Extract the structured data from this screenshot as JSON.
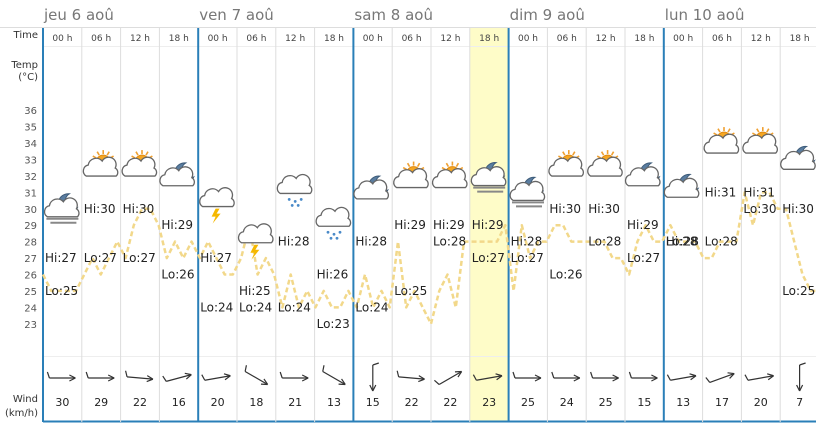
{
  "labels": {
    "time": "Time",
    "temp_line1": "Temp",
    "temp_line2": "(°C)",
    "wind_line1": "Wind",
    "wind_line2": "(km/h)"
  },
  "days": [
    "jeu 6 aoû",
    "ven 7 aoû",
    "sam 8 aoû",
    "dim 9 aoû",
    "lun 10 aoû"
  ],
  "hours": [
    "00 h",
    "06 h",
    "12 h",
    "18 h"
  ],
  "highlight_slot": 11,
  "colors": {
    "day_divider": "#2a7fb8",
    "slot_divider": "#dddddd",
    "temp_line": "#f2d88a",
    "highlight": "#fefcc8",
    "arrow": "#333333"
  },
  "y_ticks": [
    23,
    24,
    25,
    26,
    27,
    28,
    29,
    30,
    31,
    32,
    33,
    34,
    35,
    36
  ],
  "chart_data": {
    "type": "line",
    "ylim": [
      22.5,
      36.5
    ],
    "series": [
      {
        "values": [
          26,
          25,
          25,
          25,
          25,
          26,
          27,
          26,
          27,
          28,
          27,
          29,
          30,
          30,
          29,
          27,
          28,
          27,
          28,
          27,
          28,
          27,
          26,
          26,
          27,
          29,
          26,
          27,
          26,
          24,
          26,
          24,
          25,
          24,
          25,
          24,
          24,
          25,
          24,
          26,
          24,
          25,
          24,
          28,
          24,
          25,
          24,
          23,
          25,
          26,
          24,
          28,
          28,
          28,
          28,
          28,
          29,
          25,
          29,
          27,
          28,
          28,
          29,
          29,
          28,
          28,
          28,
          28,
          28,
          27,
          27,
          26,
          28,
          29,
          28,
          28,
          29,
          28,
          28,
          28,
          27,
          27,
          28,
          28,
          28,
          31,
          29,
          31,
          31,
          30,
          30,
          28,
          26,
          25,
          25
        ]
      }
    ],
    "hi_lo": [
      {
        "text": "Hi:27",
        "v": 27,
        "slot": 0
      },
      {
        "text": "Lo:25",
        "v": 25,
        "slot": 0
      },
      {
        "text": "Hi:30",
        "v": 30,
        "slot": 1
      },
      {
        "text": "Lo:27",
        "v": 27,
        "slot": 1
      },
      {
        "text": "Hi:30",
        "v": 30,
        "slot": 2
      },
      {
        "text": "Lo:27",
        "v": 27,
        "slot": 2
      },
      {
        "text": "Hi:29",
        "v": 29,
        "slot": 3
      },
      {
        "text": "Lo:26",
        "v": 26,
        "slot": 3
      },
      {
        "text": "Hi:27",
        "v": 27,
        "slot": 4
      },
      {
        "text": "Lo:24",
        "v": 24,
        "slot": 4
      },
      {
        "text": "Hi:25",
        "v": 25,
        "slot": 5
      },
      {
        "text": "Lo:24",
        "v": 24,
        "slot": 5
      },
      {
        "text": "Hi:28",
        "v": 28,
        "slot": 6
      },
      {
        "text": "Lo:24",
        "v": 24,
        "slot": 6
      },
      {
        "text": "Hi:26",
        "v": 26,
        "slot": 7
      },
      {
        "text": "Lo:23",
        "v": 23,
        "slot": 7
      },
      {
        "text": "Hi:28",
        "v": 28,
        "slot": 8
      },
      {
        "text": "Lo:24",
        "v": 24,
        "slot": 8
      },
      {
        "text": "Hi:29",
        "v": 29,
        "slot": 9
      },
      {
        "text": "Lo:25",
        "v": 25,
        "slot": 9
      },
      {
        "text": "Hi:29",
        "v": 29,
        "slot": 10
      },
      {
        "text": "Lo:28",
        "v": 28,
        "slot": 10
      },
      {
        "text": "Hi:29",
        "v": 29,
        "slot": 11
      },
      {
        "text": "Lo:27",
        "v": 27,
        "slot": 11
      },
      {
        "text": "Hi:28",
        "v": 28,
        "slot": 12
      },
      {
        "text": "Lo:27",
        "v": 27,
        "slot": 12
      },
      {
        "text": "Hi:30",
        "v": 30,
        "slot": 13
      },
      {
        "text": "Lo:26",
        "v": 26,
        "slot": 13
      },
      {
        "text": "Hi:30",
        "v": 30,
        "slot": 14
      },
      {
        "text": "Lo:28",
        "v": 28,
        "slot": 14
      },
      {
        "text": "Hi:29",
        "v": 29,
        "slot": 15
      },
      {
        "text": "Lo:27",
        "v": 27,
        "slot": 15
      },
      {
        "text": "Hi:28",
        "v": 28,
        "slot": 16
      },
      {
        "text": "Lo:28",
        "v": 28,
        "slot": 16
      },
      {
        "text": "Hi:31",
        "v": 31,
        "slot": 17
      },
      {
        "text": "Lo:28",
        "v": 28,
        "slot": 17
      },
      {
        "text": "Hi:31",
        "v": 31,
        "slot": 18
      },
      {
        "text": "Lo:30",
        "v": 30,
        "slot": 18
      },
      {
        "text": "Hi:30",
        "v": 30,
        "slot": 19
      },
      {
        "text": "Lo:25",
        "v": 25,
        "slot": 19
      }
    ],
    "weather": [
      {
        "slot": 0,
        "icon": "moon-cloud-fog-icon",
        "v": 30
      },
      {
        "slot": 1,
        "icon": "sun-cloud-icon",
        "v": 32.6
      },
      {
        "slot": 2,
        "icon": "sun-cloud-icon",
        "v": 32.6
      },
      {
        "slot": 3,
        "icon": "moon-cloud-icon",
        "v": 32
      },
      {
        "slot": 4,
        "icon": "cloud-lightning-icon",
        "v": 30.5
      },
      {
        "slot": 5,
        "icon": "cloud-lightning-icon",
        "v": 28.3
      },
      {
        "slot": 6,
        "icon": "cloud-snow-icon",
        "v": 31.3
      },
      {
        "slot": 7,
        "icon": "cloud-snow-icon",
        "v": 29.3
      },
      {
        "slot": 8,
        "icon": "moon-cloud-icon",
        "v": 31.2
      },
      {
        "slot": 9,
        "icon": "sun-cloud-icon",
        "v": 31.9
      },
      {
        "slot": 10,
        "icon": "sun-cloud-icon",
        "v": 31.9
      },
      {
        "slot": 11,
        "icon": "moon-cloud-fog-icon",
        "v": 31.9
      },
      {
        "slot": 12,
        "icon": "moon-cloud-fog-icon",
        "v": 31
      },
      {
        "slot": 13,
        "icon": "sun-cloud-icon",
        "v": 32.6
      },
      {
        "slot": 14,
        "icon": "sun-cloud-icon",
        "v": 32.6
      },
      {
        "slot": 15,
        "icon": "moon-cloud-icon",
        "v": 32
      },
      {
        "slot": 16,
        "icon": "moon-cloud-icon",
        "v": 31.3
      },
      {
        "slot": 17,
        "icon": "sun-cloud-icon",
        "v": 34
      },
      {
        "slot": 18,
        "icon": "sun-cloud-icon",
        "v": 34
      },
      {
        "slot": 19,
        "icon": "moon-cloud-icon",
        "v": 33
      }
    ],
    "wind": [
      {
        "speed": "30",
        "dir": 90
      },
      {
        "speed": "29",
        "dir": 90
      },
      {
        "speed": "22",
        "dir": 95
      },
      {
        "speed": "16",
        "dir": 75
      },
      {
        "speed": "20",
        "dir": 80
      },
      {
        "speed": "18",
        "dir": 120
      },
      {
        "speed": "21",
        "dir": 90
      },
      {
        "speed": "13",
        "dir": 120
      },
      {
        "speed": "15",
        "dir": 180
      },
      {
        "speed": "22",
        "dir": 95
      },
      {
        "speed": "22",
        "dir": 60
      },
      {
        "speed": "23",
        "dir": 80
      },
      {
        "speed": "25",
        "dir": 90
      },
      {
        "speed": "24",
        "dir": 90
      },
      {
        "speed": "25",
        "dir": 90
      },
      {
        "speed": "15",
        "dir": 90
      },
      {
        "speed": "13",
        "dir": 80
      },
      {
        "speed": "17",
        "dir": 70
      },
      {
        "speed": "20",
        "dir": 80
      },
      {
        "speed": "7",
        "dir": 180
      }
    ]
  }
}
